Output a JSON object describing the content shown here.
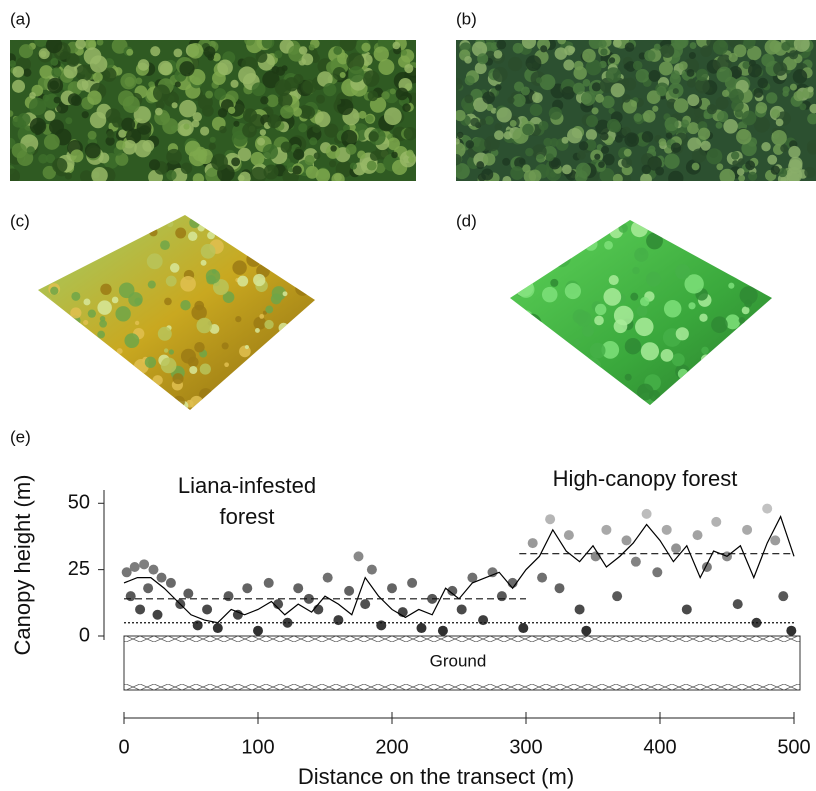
{
  "panel_labels": [
    "(a)",
    "(b)",
    "(c)",
    "(d)",
    "(e)"
  ],
  "chart_data": {
    "type": "scatter",
    "ylabel": "Canopy height (m)",
    "xlabel": "Distance on the transect (m)",
    "annotations": [
      {
        "lines": [
          "Liana-infested",
          "forest"
        ]
      },
      {
        "lines": [
          "High-canopy forest"
        ]
      },
      {
        "lines": [
          "Ground"
        ]
      }
    ],
    "xlim": [
      0,
      500
    ],
    "xticks": [
      0,
      100,
      200,
      300,
      400,
      500
    ],
    "ylim": [
      0,
      55
    ],
    "yticks": [
      0,
      25,
      50
    ],
    "series": [
      {
        "type": "scatter",
        "color_range": [
          "#2a2a2a",
          "#d8d8d8"
        ],
        "x": [
          2,
          5,
          8,
          12,
          15,
          18,
          22,
          25,
          28,
          35,
          42,
          48,
          55,
          62,
          70,
          78,
          85,
          92,
          100,
          108,
          115,
          122,
          130,
          138,
          145,
          152,
          160,
          168,
          175,
          180,
          185,
          192,
          200,
          208,
          215,
          222,
          230,
          238,
          245,
          252,
          260,
          268,
          275,
          282,
          290,
          298,
          305,
          312,
          318,
          325,
          332,
          340,
          345,
          352,
          360,
          368,
          375,
          382,
          390,
          398,
          405,
          412,
          420,
          428,
          435,
          442,
          450,
          458,
          465,
          472,
          480,
          486,
          492,
          498
        ],
        "values": [
          24,
          15,
          26,
          10,
          27,
          18,
          25,
          8,
          22,
          20,
          12,
          16,
          4,
          10,
          3,
          15,
          8,
          18,
          2,
          20,
          12,
          5,
          18,
          14,
          10,
          22,
          6,
          17,
          30,
          12,
          25,
          4,
          18,
          9,
          20,
          3,
          14,
          2,
          17,
          10,
          22,
          6,
          24,
          15,
          20,
          3,
          35,
          22,
          44,
          18,
          38,
          10,
          2,
          30,
          40,
          15,
          36,
          28,
          46,
          24,
          40,
          33,
          10,
          38,
          26,
          43,
          30,
          12,
          40,
          5,
          48,
          36,
          15,
          2
        ]
      },
      {
        "type": "line",
        "color": "#000000",
        "x": [
          0,
          10,
          20,
          30,
          40,
          50,
          60,
          70,
          80,
          90,
          100,
          110,
          120,
          130,
          140,
          150,
          160,
          170,
          180,
          190,
          200,
          210,
          220,
          230,
          240,
          250,
          260,
          270,
          280,
          290,
          300,
          310,
          320,
          330,
          340,
          350,
          360,
          370,
          380,
          390,
          400,
          410,
          420,
          430,
          440,
          450,
          460,
          470,
          480,
          490,
          500
        ],
        "values": [
          20,
          22,
          22,
          18,
          13,
          8,
          6,
          5,
          10,
          8,
          10,
          13,
          8,
          12,
          9,
          15,
          12,
          8,
          22,
          15,
          10,
          7,
          10,
          8,
          18,
          14,
          20,
          22,
          24,
          18,
          25,
          30,
          40,
          32,
          28,
          34,
          26,
          30,
          35,
          42,
          36,
          28,
          34,
          22,
          32,
          30,
          34,
          22,
          35,
          45,
          30
        ]
      }
    ],
    "reference_lines": [
      {
        "x": [
          0,
          300
        ],
        "y": 14,
        "style": "dashed"
      },
      {
        "x": [
          295,
          500
        ],
        "y": 31,
        "style": "dashed"
      },
      {
        "x": [
          0,
          500
        ],
        "y": 5,
        "style": "dotted"
      }
    ]
  }
}
